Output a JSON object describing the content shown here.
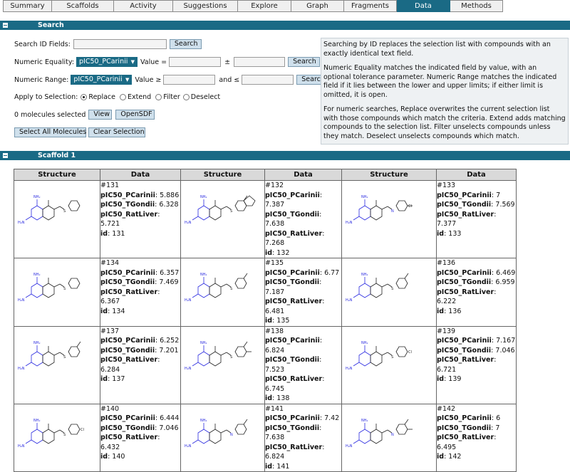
{
  "tabs": [
    {
      "label": "Summary",
      "active": false
    },
    {
      "label": "Scaffolds",
      "active": false
    },
    {
      "label": "Activity",
      "active": false
    },
    {
      "label": "Suggestions",
      "active": false
    },
    {
      "label": "Explore",
      "active": false
    },
    {
      "label": "Graph",
      "active": false
    },
    {
      "label": "Fragments",
      "active": false
    },
    {
      "label": "Data",
      "active": true
    },
    {
      "label": "Methods",
      "active": false
    }
  ],
  "search": {
    "header": "Search",
    "id_fields_label": "Search ID Fields:",
    "search_button": "Search",
    "numeric_equality_label": "Numeric Equality:",
    "numeric_equality_field": "pIC50_PCarinii",
    "value_eq_label": "Value =",
    "plusminus": "±",
    "numeric_range_label": "Numeric Range:",
    "numeric_range_field": "pIC50_PCarinii",
    "value_ge_label": "Value ≥",
    "and_le_label": "and ≤",
    "apply_label": "Apply to Selection:",
    "apply_options": [
      "Replace",
      "Extend",
      "Filter",
      "Deselect"
    ],
    "apply_selected": "Replace",
    "selected_count": "0 molecules selected",
    "view_button": "View",
    "opensdf_button": "OpenSDF",
    "select_all_button": "Select All Molecules",
    "clear_selection_button": "Clear Selection",
    "help": [
      "Searching by ID replaces the selection list with compounds with an exactly identical text field.",
      "Numeric Equality matches the indicated field by value, with an optional tolerance parameter. Numeric Range matches the indicated field if it lies between the lower and upper limits; if either limit is omitted, it is open.",
      "For numeric searches, Replace overwrites the current selection list with those compounds which match the criteria. Extend adds matching compounds to the selection list. Filter unselects compounds unless they match. Deselect unselects compounds which match."
    ]
  },
  "scaffold": {
    "header": "Scaffold 1",
    "columns": [
      "Structure",
      "Data",
      "Structure",
      "Data",
      "Structure",
      "Data"
    ],
    "field_labels": {
      "p": "pIC50_PCarinii",
      "t": "pIC50_TGondii",
      "r": "pIC50_RatLiver",
      "id": "id"
    },
    "rows": [
      [
        {
          "num": "#131",
          "p": "5.886",
          "t": "6.328",
          "r": "5.721",
          "id": "131",
          "sub": "S-phenyl"
        },
        {
          "num": "#132",
          "p": "7.387",
          "t": "7.638",
          "r": "7.268",
          "id": "132",
          "sub": "naphthyl-OMe"
        },
        {
          "num": "#133",
          "p": "7",
          "t": "7.569",
          "r": "7.377",
          "id": "133",
          "sub": "N-dichlorophenyl"
        }
      ],
      [
        {
          "num": "#134",
          "p": "6.357",
          "t": "7.469",
          "r": "6.367",
          "id": "134",
          "sub": "S-phenyl"
        },
        {
          "num": "#135",
          "p": "6.77",
          "t": "7.187",
          "r": "6.481",
          "id": "135",
          "sub": "S-tolyl"
        },
        {
          "num": "#136",
          "p": "6.469",
          "t": "6.959",
          "r": "6.222",
          "id": "136",
          "sub": "S-methoxyphenyl"
        }
      ],
      [
        {
          "num": "#137",
          "p": "6.252",
          "t": "7.201",
          "r": "6.284",
          "id": "137",
          "sub": "S-methoxyphenyl"
        },
        {
          "num": "#138",
          "p": "6.824",
          "t": "7.523",
          "r": "6.745",
          "id": "138",
          "sub": "S-dimethoxyphenyl"
        },
        {
          "num": "#139",
          "p": "7.167",
          "t": "7.046",
          "r": "6.721",
          "id": "139",
          "sub": "S-chlorophenyl"
        }
      ],
      [
        {
          "num": "#140",
          "p": "6.444",
          "t": "7.046",
          "r": "6.432",
          "id": "140",
          "sub": "S-chlorophenyl"
        },
        {
          "num": "#141",
          "p": "7.42",
          "t": "7.638",
          "r": "6.824",
          "id": "141",
          "sub": "NH-methoxyphenyl"
        },
        {
          "num": "#142",
          "p": "6",
          "t": "7",
          "r": "6.495",
          "id": "142",
          "sub": "NH-dimethylphenyl"
        }
      ]
    ]
  },
  "colors": {
    "accent": "#1a6a85",
    "nitrogen": "#2a2ae0"
  }
}
